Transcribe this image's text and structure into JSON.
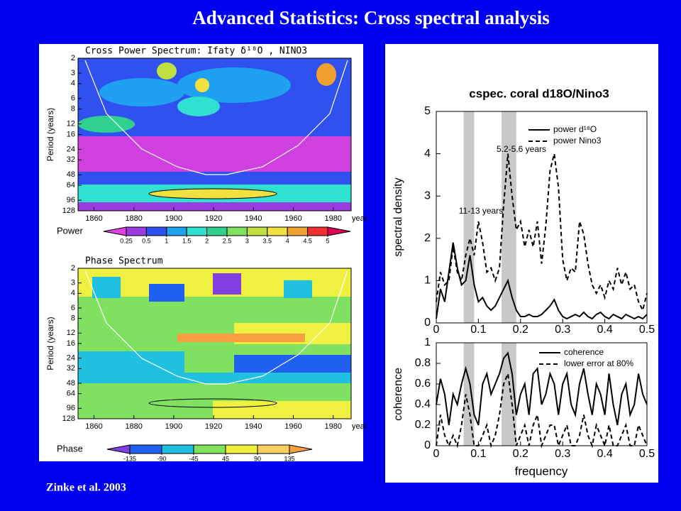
{
  "title": "Advanced Statistics: Cross spectral analysis",
  "citation": "Zinke et al. 2003",
  "cross_power": {
    "type": "heatmap",
    "title": "Cross Power Spectrum: Ifaty δ¹⁸O , NINO3",
    "ylabel": "Period (years)",
    "xlabel": "year",
    "xlim": [
      1852,
      1989
    ],
    "xticks": [
      1860,
      1880,
      1900,
      1920,
      1940,
      1960,
      1980
    ],
    "ylim": [
      2,
      128
    ],
    "log_y": true,
    "yticks": [
      2,
      3,
      4,
      6,
      8,
      12,
      16,
      24,
      32,
      48,
      64,
      96,
      128
    ],
    "colorbar": {
      "label": "Power",
      "ticks": [
        0.25,
        0.5,
        1,
        1.5,
        2,
        2.5,
        3,
        3.5,
        4,
        4.5,
        5
      ],
      "colors": [
        "#e040e0",
        "#9a3ce0",
        "#3050f0",
        "#20a0f0",
        "#30e0d0",
        "#30d090",
        "#80e060",
        "#c0e040",
        "#f0e040",
        "#f0a030",
        "#f03030",
        "#e00050"
      ]
    }
  },
  "phase": {
    "type": "heatmap",
    "title": "Phase Spectrum",
    "ylabel": "Period (years)",
    "xlabel": "year",
    "xlim": [
      1852,
      1989
    ],
    "xticks": [
      1860,
      1880,
      1900,
      1920,
      1940,
      1960,
      1980
    ],
    "ylim": [
      2,
      128
    ],
    "log_y": true,
    "yticks": [
      2,
      3,
      4,
      6,
      8,
      12,
      16,
      24,
      32,
      48,
      64,
      96,
      128
    ],
    "colorbar": {
      "label": "Phase",
      "ticks": [
        -135,
        -90,
        -45,
        45,
        90,
        135
      ],
      "colors": [
        "#8040e0",
        "#2060f0",
        "#20c0e0",
        "#80e060",
        "#f0f040",
        "#f8d060",
        "#f8a040"
      ]
    }
  },
  "cspec": {
    "type": "line",
    "title": "cspec. coral d18O/Nino3",
    "xlabel": "frequency",
    "x": [
      0,
      0.01,
      0.02,
      0.03,
      0.04,
      0.05,
      0.06,
      0.07,
      0.08,
      0.09,
      0.1,
      0.11,
      0.12,
      0.13,
      0.14,
      0.15,
      0.16,
      0.17,
      0.18,
      0.19,
      0.2,
      0.21,
      0.22,
      0.23,
      0.24,
      0.25,
      0.26,
      0.27,
      0.28,
      0.29,
      0.3,
      0.31,
      0.32,
      0.33,
      0.34,
      0.35,
      0.36,
      0.37,
      0.38,
      0.39,
      0.4,
      0.41,
      0.42,
      0.43,
      0.44,
      0.45,
      0.46,
      0.47,
      0.48,
      0.49,
      0.5
    ],
    "xlim": [
      0,
      0.5
    ],
    "xticks": [
      0,
      0.1,
      0.2,
      0.3,
      0.4,
      0.5
    ],
    "bands": [
      [
        0.065,
        0.09
      ],
      [
        0.155,
        0.19
      ]
    ],
    "top": {
      "ylabel": "spectral density",
      "ylim": [
        0,
        5
      ],
      "yticks": [
        0,
        1,
        2,
        3,
        4,
        5
      ],
      "annotations": [
        "5.2-5.6 years",
        "11-13 years"
      ],
      "series": [
        {
          "name": "power d¹⁸O",
          "color": "#000",
          "dash": false,
          "values": [
            0.1,
            0.8,
            0.5,
            1.2,
            1.9,
            1.3,
            0.9,
            1.0,
            1.6,
            0.9,
            0.5,
            0.6,
            0.4,
            0.3,
            0.4,
            0.6,
            0.8,
            1.0,
            0.6,
            0.3,
            0.15,
            0.15,
            0.2,
            0.15,
            0.15,
            0.2,
            0.3,
            0.4,
            0.55,
            0.3,
            0.15,
            0.1,
            0.15,
            0.2,
            0.15,
            0.25,
            0.15,
            0.1,
            0.2,
            0.25,
            0.15,
            0.1,
            0.2,
            0.15,
            0.1,
            0.2,
            0.15,
            0.1,
            0.15,
            0.1,
            0.2
          ]
        },
        {
          "name": "power Nino3",
          "color": "#000",
          "dash": true,
          "values": [
            0.5,
            1.2,
            0.9,
            1.0,
            1.8,
            1.2,
            1.0,
            1.6,
            2.0,
            1.6,
            2.4,
            1.9,
            1.2,
            1.3,
            1.0,
            1.3,
            2.8,
            4.0,
            3.0,
            2.2,
            2.4,
            1.8,
            2.2,
            1.8,
            2.4,
            1.4,
            2.3,
            3.6,
            4.0,
            3.2,
            1.5,
            1.0,
            1.3,
            1.2,
            2.4,
            2.1,
            1.4,
            0.9,
            0.7,
            0.9,
            0.6,
            1.0,
            0.8,
            1.3,
            0.9,
            1.2,
            0.8,
            0.9,
            0.5,
            0.3,
            0.7
          ]
        }
      ]
    },
    "bottom": {
      "ylabel": "coherence",
      "ylim": [
        0,
        1
      ],
      "yticks": [
        0,
        0.2,
        0.4,
        0.6,
        0.8,
        1
      ],
      "series": [
        {
          "name": "coherence",
          "color": "#000",
          "dash": false,
          "values": [
            0.4,
            0.65,
            0.5,
            0.2,
            0.5,
            0.4,
            0.6,
            0.75,
            0.6,
            0.3,
            0.2,
            0.6,
            0.7,
            0.5,
            0.6,
            0.7,
            0.85,
            0.9,
            0.7,
            0.3,
            0.5,
            0.6,
            0.3,
            0.7,
            0.75,
            0.4,
            0.5,
            0.7,
            0.6,
            0.3,
            0.6,
            0.7,
            0.4,
            0.3,
            0.6,
            0.75,
            0.5,
            0.3,
            0.6,
            0.5,
            0.3,
            0.7,
            0.4,
            0.2,
            0.5,
            0.6,
            0.3,
            0.4,
            0.7,
            0.5,
            0.4
          ]
        },
        {
          "name": "lower error at 80%",
          "color": "#000",
          "dash": true,
          "values": [
            0,
            0.3,
            0.1,
            0,
            0.1,
            0,
            0.2,
            0.5,
            0.3,
            0,
            0,
            0.1,
            0.2,
            0,
            0.1,
            0.3,
            0.6,
            0.7,
            0.4,
            0,
            0.1,
            0.2,
            0,
            0.2,
            0.3,
            0,
            0.1,
            0.2,
            0.2,
            0,
            0.1,
            0.2,
            0,
            0,
            0.1,
            0.3,
            0.1,
            0,
            0.2,
            0.1,
            0,
            0.2,
            0,
            0,
            0.1,
            0.2,
            0,
            0,
            0.2,
            0.1,
            0
          ]
        }
      ]
    }
  }
}
